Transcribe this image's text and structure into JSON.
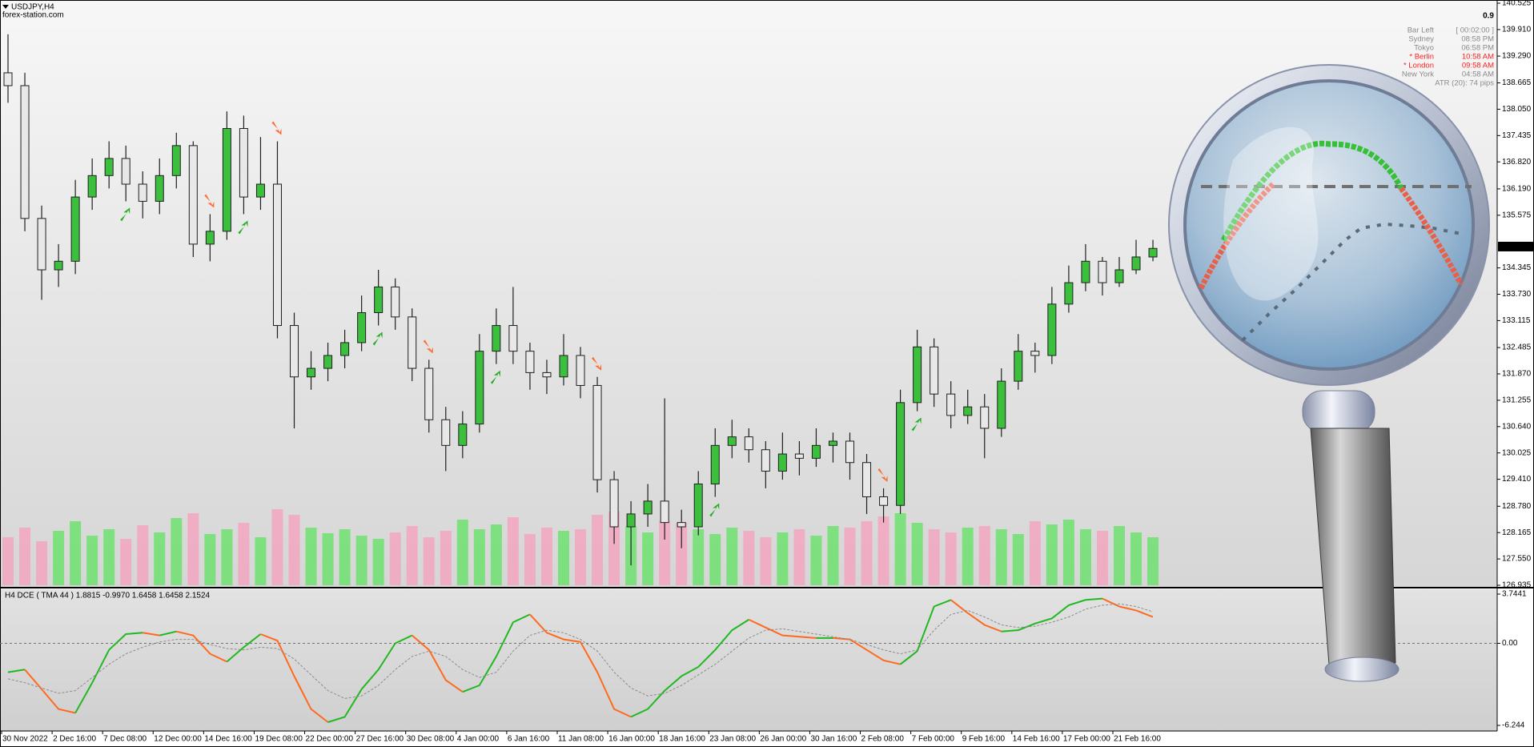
{
  "header": {
    "symbol": "USDJPY,H4",
    "source": "forex-station.com"
  },
  "info_panel": {
    "spread": "0.9",
    "rows": [
      [
        "Bar Left",
        "[ 00:02:00 ]"
      ],
      [
        "Sydney",
        "08:58 PM"
      ],
      [
        "Tokyo",
        "06:58 PM"
      ],
      [
        "* Berlin",
        "10:58 AM"
      ],
      [
        "* London",
        "09:58 AM"
      ],
      [
        "New York",
        "04:58 AM"
      ]
    ],
    "atr": "ATR (20): 74 pips"
  },
  "chart_data": [
    {
      "type": "candlestick",
      "open": [
        138.9,
        138.6,
        135.5,
        134.3,
        134.5,
        136.0,
        136.5,
        136.9,
        136.3,
        135.9,
        136.5,
        137.2,
        134.9,
        135.2,
        137.6,
        136.0,
        136.3,
        133.0,
        131.8,
        132.0,
        132.3,
        132.6,
        133.3,
        133.9,
        133.2,
        132.0,
        130.8,
        130.2,
        130.7,
        132.4,
        133.0,
        132.4,
        131.9,
        131.8,
        132.3,
        131.6,
        129.4,
        128.3,
        128.6,
        128.9,
        128.4,
        128.3,
        129.3,
        130.2,
        130.4,
        130.1,
        129.6,
        130.0,
        129.9,
        130.2,
        130.3,
        129.8,
        129.0,
        128.8,
        131.2,
        132.5,
        131.4,
        130.9,
        131.1,
        130.6,
        131.7,
        132.4,
        132.3,
        133.5,
        134.0,
        134.5,
        134.0,
        134.3,
        134.6
      ],
      "high": [
        139.8,
        138.9,
        135.8,
        134.9,
        136.4,
        136.9,
        137.3,
        137.2,
        136.6,
        136.9,
        137.5,
        137.3,
        135.6,
        138.0,
        137.9,
        137.4,
        137.3,
        133.3,
        132.4,
        132.6,
        132.9,
        133.7,
        134.3,
        134.1,
        133.4,
        132.2,
        131.1,
        131.0,
        132.8,
        133.4,
        133.9,
        132.6,
        132.2,
        132.8,
        132.5,
        131.8,
        129.6,
        128.9,
        129.3,
        131.3,
        128.7,
        129.6,
        130.6,
        130.8,
        130.6,
        130.3,
        130.5,
        130.3,
        130.6,
        130.5,
        130.5,
        130.0,
        129.2,
        131.5,
        132.9,
        132.7,
        131.7,
        131.5,
        131.4,
        132.0,
        132.8,
        132.6,
        133.9,
        134.4,
        134.9,
        134.6,
        134.6,
        135.0,
        135.0
      ],
      "low": [
        138.2,
        135.2,
        133.6,
        133.9,
        134.2,
        135.7,
        136.2,
        135.9,
        135.5,
        135.6,
        136.2,
        134.6,
        134.5,
        135.0,
        135.6,
        135.7,
        132.7,
        130.6,
        131.5,
        131.7,
        132.0,
        132.4,
        133.0,
        132.9,
        131.7,
        130.5,
        129.6,
        129.9,
        130.5,
        132.1,
        132.1,
        131.5,
        131.4,
        131.6,
        131.3,
        129.1,
        127.9,
        127.4,
        128.3,
        128.0,
        127.8,
        128.1,
        129.0,
        129.9,
        129.8,
        129.2,
        129.4,
        129.5,
        129.7,
        129.8,
        129.4,
        128.6,
        128.4,
        128.6,
        131.0,
        131.1,
        130.6,
        130.7,
        129.9,
        130.4,
        131.5,
        131.9,
        132.1,
        133.3,
        133.8,
        133.7,
        133.9,
        134.2,
        134.5
      ],
      "close": [
        138.6,
        135.5,
        134.3,
        134.5,
        136.0,
        136.5,
        136.9,
        136.3,
        135.9,
        136.5,
        137.2,
        134.9,
        135.2,
        137.6,
        136.0,
        136.3,
        133.0,
        131.8,
        132.0,
        132.3,
        132.6,
        133.3,
        133.9,
        133.2,
        132.0,
        130.8,
        130.2,
        130.7,
        132.4,
        133.0,
        132.4,
        131.9,
        131.8,
        132.3,
        131.6,
        129.4,
        128.3,
        128.6,
        128.9,
        128.4,
        128.3,
        129.3,
        130.2,
        130.4,
        130.1,
        129.6,
        130.0,
        129.9,
        130.2,
        130.3,
        129.8,
        129.0,
        128.8,
        131.2,
        132.5,
        131.4,
        130.9,
        131.1,
        130.6,
        131.7,
        132.4,
        132.3,
        133.5,
        134.0,
        134.5,
        134.0,
        134.3,
        134.6,
        134.8
      ],
      "volume": [
        60,
        72,
        55,
        68,
        80,
        62,
        70,
        58,
        75,
        66,
        84,
        90,
        64,
        70,
        78,
        60,
        95,
        88,
        72,
        65,
        70,
        62,
        58,
        66,
        74,
        60,
        68,
        82,
        70,
        76,
        85,
        64,
        72,
        68,
        70,
        88,
        92,
        74,
        66,
        80,
        78,
        70,
        64,
        72,
        68,
        60,
        66,
        70,
        62,
        74,
        72,
        80,
        86,
        90,
        78,
        70,
        66,
        72,
        74,
        70,
        64,
        80,
        76,
        82,
        70,
        68,
        74,
        66,
        60
      ],
      "up_color": "#3cbf3c",
      "down_color": "#e8e8e8",
      "wick_color": "#1f1f1f",
      "volume_up_color": "#6fe06f",
      "volume_down_color": "#f2a6bf",
      "up_arrows": [
        7,
        14,
        22,
        29,
        42,
        54
      ],
      "down_arrows": [
        12,
        16,
        25,
        35,
        52
      ],
      "up_arrow_color": "#22b022",
      "down_arrow_color": "#ff6a30",
      "last_price": 134.843,
      "ylim": [
        126.935,
        140.525
      ],
      "yticks": [
        140.525,
        {
          "value": 139.29,
          "label": "139.290"
        },
        138.665,
        {
          "value": 138.05,
          "label": "138.050"
        },
        137.435,
        {
          "value": 136.82,
          "label": "136.820"
        },
        {
          "value": 136.19,
          "label": "136.190"
        },
        135.575,
        134.345,
        {
          "value": 133.73,
          "label": "133.730"
        },
        133.115,
        132.485,
        {
          "value": 131.87,
          "label": "131.870"
        },
        131.255,
        {
          "value": 130.64,
          "label": "130.640"
        },
        130.025,
        {
          "value": 129.41,
          "label": "129.410"
        },
        {
          "value": 128.78,
          "label": "128.780"
        },
        128.165,
        {
          "value": 127.55,
          "label": "127.550"
        },
        126.935,
        {
          "value": 139.91,
          "label": "139.910"
        }
      ]
    },
    {
      "type": "line",
      "title": "H4 DCE  ( TMA  44 ) 1.8815 -0.9970 1.6458 1.6458 2.1524",
      "categories": [
        "30 Nov 2022",
        null,
        null,
        "2 Dec 16:00",
        null,
        null,
        "7 Dec 08:00",
        null,
        null,
        "12 Dec 00:00",
        null,
        null,
        "14 Dec 16:00",
        null,
        null,
        "19 Dec 08:00",
        null,
        null,
        "22 Dec 00:00",
        null,
        null,
        "27 Dec 16:00",
        null,
        null,
        "30 Dec 08:00",
        null,
        null,
        "4 Jan 00:00",
        null,
        null,
        "6 Jan 16:00",
        null,
        null,
        "11 Jan 08:00",
        null,
        null,
        "16 Jan 00:00",
        null,
        null,
        "18 Jan 16:00",
        null,
        null,
        "23 Jan 08:00",
        null,
        null,
        "26 Jan 00:00",
        null,
        null,
        "30 Jan 16:00",
        null,
        null,
        "2 Feb 08:00",
        null,
        null,
        "7 Feb 00:00",
        null,
        null,
        "9 Feb 16:00",
        null,
        null,
        "14 Feb 16:00",
        null,
        null,
        "17 Feb 00:00",
        null,
        null,
        "21 Feb 16:00",
        null,
        null
      ],
      "series": [
        {
          "rising_color": "#22b822",
          "falling_color": "#ff6a20",
          "values": [
            -2.2,
            -2.0,
            -3.5,
            -5.0,
            -5.3,
            -3.0,
            -0.5,
            0.7,
            0.8,
            0.6,
            0.9,
            0.6,
            -0.8,
            -1.4,
            -0.3,
            0.7,
            0.2,
            -2.5,
            -5.0,
            -6.0,
            -5.6,
            -3.5,
            -2.0,
            0.0,
            0.6,
            -0.5,
            -2.8,
            -3.7,
            -3.2,
            -1.0,
            1.6,
            2.2,
            0.8,
            0.3,
            0.1,
            -2.2,
            -5.0,
            -5.6,
            -5.0,
            -3.6,
            -2.5,
            -1.8,
            -0.5,
            1.0,
            1.8,
            1.2,
            0.6,
            0.5,
            0.4,
            0.4,
            0.3,
            -0.5,
            -1.3,
            -1.6,
            -0.6,
            2.8,
            3.3,
            2.3,
            1.4,
            0.9,
            1.0,
            1.5,
            1.9,
            2.9,
            3.3,
            3.4,
            2.8,
            2.5,
            2.0
          ]
        },
        {
          "color": "#8c8c8c",
          "dashed": true,
          "values": [
            -2.7,
            -3.0,
            -3.4,
            -3.8,
            -3.6,
            -2.6,
            -1.6,
            -0.8,
            -0.3,
            0.1,
            0.3,
            0.3,
            -0.1,
            -0.4,
            -0.5,
            -0.3,
            -0.4,
            -1.2,
            -2.4,
            -3.6,
            -4.2,
            -4.0,
            -3.2,
            -2.0,
            -1.0,
            -0.6,
            -1.0,
            -2.0,
            -2.6,
            -2.2,
            -0.6,
            0.6,
            1.0,
            0.8,
            0.3,
            -0.6,
            -2.2,
            -3.4,
            -4.0,
            -3.8,
            -3.2,
            -2.4,
            -1.6,
            -0.6,
            0.4,
            1.0,
            1.1,
            0.9,
            0.7,
            0.5,
            0.3,
            -0.1,
            -0.5,
            -0.8,
            -0.5,
            1.0,
            2.2,
            2.5,
            2.0,
            1.4,
            1.2,
            1.3,
            1.6,
            2.0,
            2.6,
            2.9,
            3.0,
            2.8,
            2.4
          ]
        }
      ],
      "level": 0,
      "ylim": [
        -6.244,
        3.7441
      ],
      "yticks": [
        3.7441,
        {
          "value": 0,
          "label": "0.00"
        },
        -6.244
      ]
    }
  ]
}
